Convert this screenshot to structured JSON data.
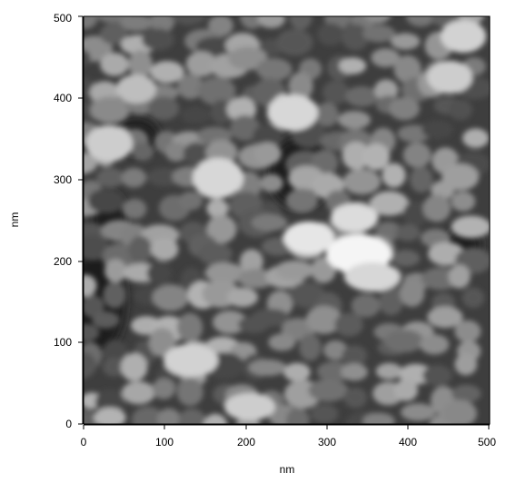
{
  "image": {
    "subject": "afm-topography-grayscale",
    "colormap": [
      "#1a1a1a",
      "#ffffff"
    ]
  },
  "axes": {
    "x": {
      "label": "nm",
      "ticks": [
        "0",
        "100",
        "200",
        "300",
        "400",
        "500"
      ],
      "range": [
        0,
        500
      ]
    },
    "y": {
      "label": "nm",
      "ticks": [
        "0",
        "100",
        "200",
        "300",
        "400",
        "500"
      ],
      "range": [
        0,
        500
      ]
    }
  }
}
